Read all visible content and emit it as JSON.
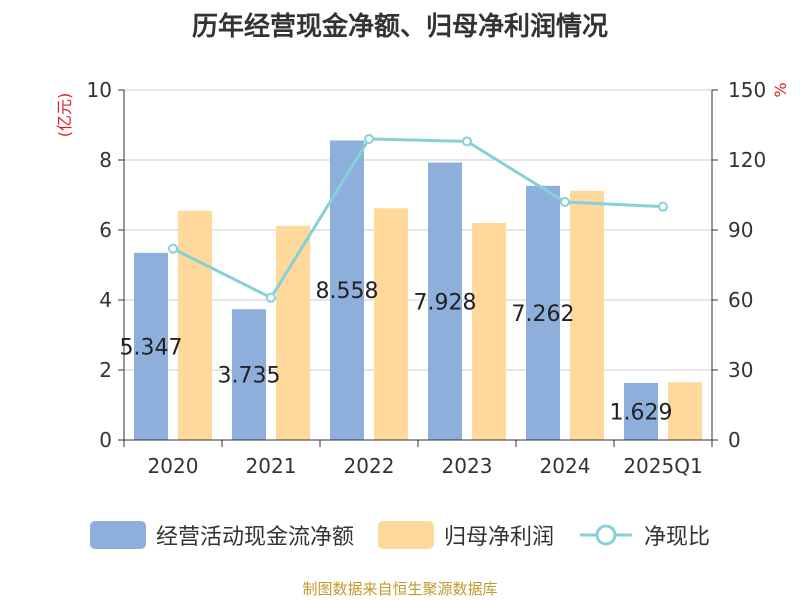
{
  "colors": {
    "bar_cash": "#8eaedb",
    "bar_profit": "#ffd99b",
    "line": "#86d0d8",
    "axis_unit": "#e02020"
  },
  "chart_data": {
    "type": "bar",
    "title": "历年经营现金净额、归母净利润情况",
    "categories": [
      "2020",
      "2021",
      "2022",
      "2023",
      "2024",
      "2025Q1"
    ],
    "series": [
      {
        "name": "经营活动现金流净额",
        "type": "bar",
        "axis": "left",
        "values": [
          5.347,
          3.735,
          8.558,
          7.928,
          7.262,
          1.629
        ],
        "labels": [
          "5.347",
          "3.735",
          "8.558",
          "7.928",
          "7.262",
          "1.629"
        ]
      },
      {
        "name": "归母净利润",
        "type": "bar",
        "axis": "left",
        "values": [
          6.55,
          6.12,
          6.62,
          6.2,
          7.12,
          1.65
        ]
      },
      {
        "name": "净现比",
        "type": "line",
        "axis": "right",
        "values": [
          82,
          61,
          129,
          128,
          102,
          100
        ]
      }
    ],
    "left_axis": {
      "unit": "(亿元)",
      "ylim": [
        0,
        10
      ],
      "ticks": [
        "0",
        "2",
        "4",
        "6",
        "8",
        "10"
      ]
    },
    "right_axis": {
      "unit": "%",
      "ylim": [
        0,
        150
      ],
      "ticks": [
        "0",
        "30",
        "60",
        "90",
        "120",
        "150"
      ]
    },
    "grid": true,
    "legend": "bottom"
  },
  "source": "制图数据来自恒生聚源数据库"
}
